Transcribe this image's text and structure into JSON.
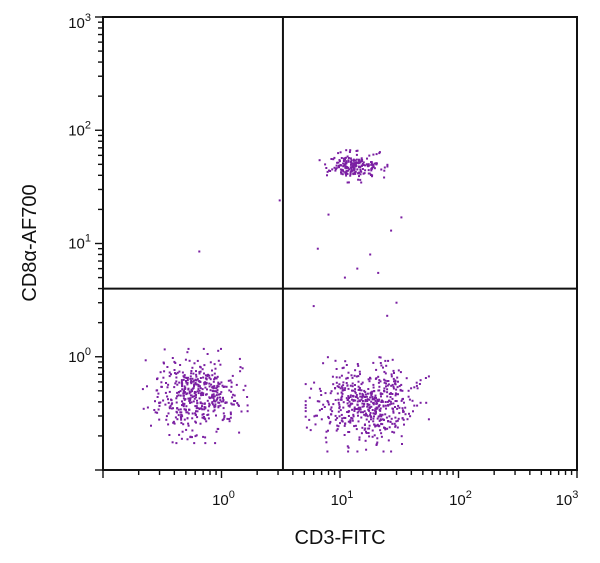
{
  "chart_data": {
    "type": "scatter",
    "title": "",
    "xlabel": "CD3-FITC",
    "ylabel": "CD8α-AF700",
    "x_scale": "log",
    "y_scale": "log",
    "xlim": [
      0.1,
      1000
    ],
    "ylim": [
      0.1,
      1000
    ],
    "grid": false,
    "legend": "none",
    "x_ticks": [
      {
        "value": 1,
        "base": "10",
        "exp": "0"
      },
      {
        "value": 10,
        "base": "10",
        "exp": "1"
      },
      {
        "value": 100,
        "base": "10",
        "exp": "2"
      },
      {
        "value": 1000,
        "base": "10",
        "exp": "3"
      }
    ],
    "y_ticks": [
      {
        "value": 1,
        "base": "10",
        "exp": "0"
      },
      {
        "value": 10,
        "base": "10",
        "exp": "1"
      },
      {
        "value": 100,
        "base": "10",
        "exp": "2"
      },
      {
        "value": 1000,
        "base": "10",
        "exp": "3"
      }
    ],
    "quadrant_gates": {
      "x": 3.3,
      "y": 4.0
    },
    "point_color": "#7a1fa2",
    "populations": [
      {
        "center_x": 0.6,
        "center_y": 0.45,
        "spread_x_log": 0.17,
        "spread_y_log": 0.16,
        "count": 480
      },
      {
        "center_x": 17,
        "center_y": 0.38,
        "spread_x_log": 0.2,
        "spread_y_log": 0.16,
        "count": 560
      },
      {
        "center_x": 13,
        "center_y": 48,
        "spread_x_log": 0.11,
        "spread_y_log": 0.055,
        "count": 210
      }
    ],
    "outliers": [
      {
        "x": 0.65,
        "y": 8.5
      },
      {
        "x": 11,
        "y": 5.0
      },
      {
        "x": 14,
        "y": 6.0
      },
      {
        "x": 21,
        "y": 5.5
      },
      {
        "x": 6,
        "y": 2.8
      },
      {
        "x": 30,
        "y": 3.0
      },
      {
        "x": 25,
        "y": 2.3
      },
      {
        "x": 6.5,
        "y": 9.0
      },
      {
        "x": 3.1,
        "y": 24
      },
      {
        "x": 18,
        "y": 8.0
      },
      {
        "x": 8,
        "y": 18
      },
      {
        "x": 27,
        "y": 13
      },
      {
        "x": 33,
        "y": 17
      }
    ]
  }
}
